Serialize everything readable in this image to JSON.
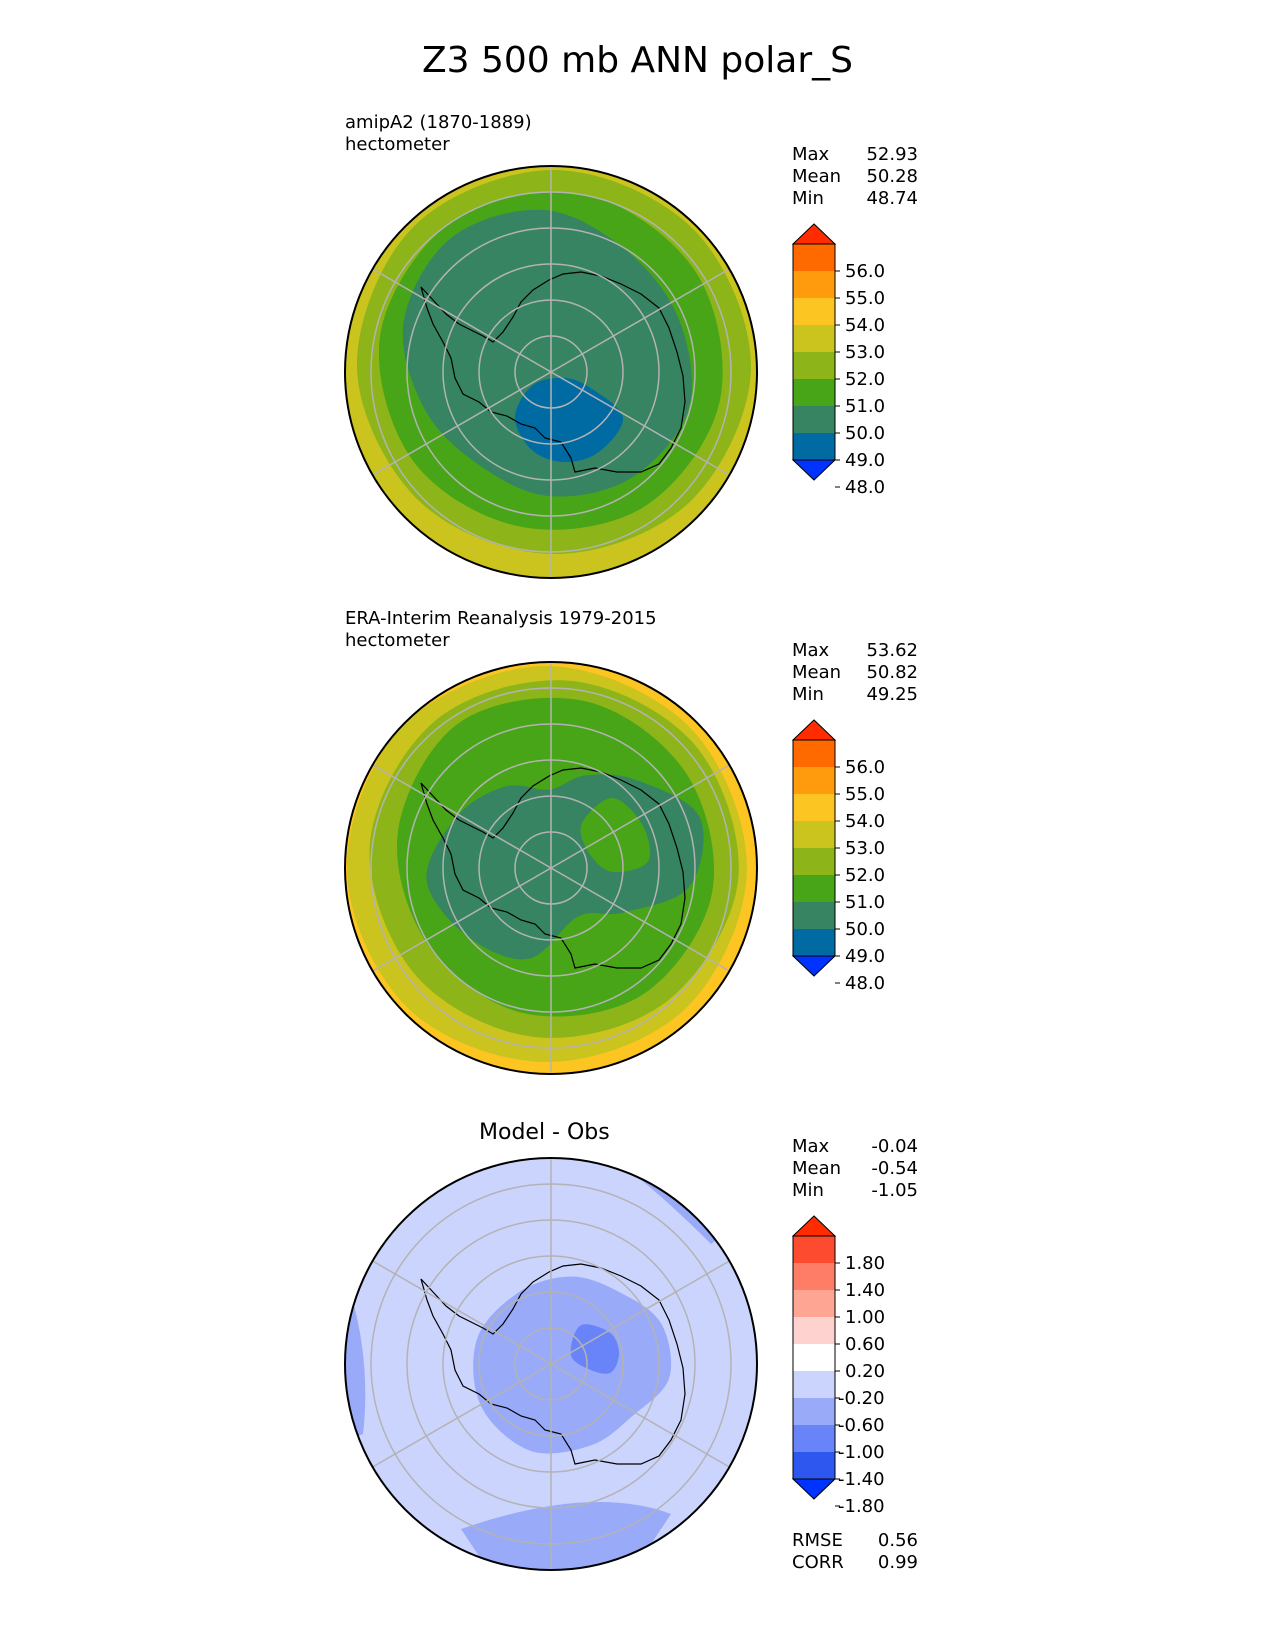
{
  "figure": {
    "title": "Z3 500 mb ANN polar_S"
  },
  "colors": {
    "abs_levels": [
      "#0033ff",
      "#006aa3",
      "#368461",
      "#48a517",
      "#8db519",
      "#cbc41e",
      "#fdc522",
      "#ff9b0d",
      "#ff6a00",
      "#ff2c00"
    ],
    "diff_levels": [
      "#0033ff",
      "#2e57f0",
      "#6884f8",
      "#99aaf8",
      "#cbd4fc",
      "#ffffff",
      "#fed3cf",
      "#fea594",
      "#fe7d66",
      "#fd4b30",
      "#ff2c00"
    ],
    "land_outline": "#000000",
    "grid": "#b3b3b3"
  },
  "panels": [
    {
      "id": "test",
      "label": "amipA2 (1870-1889)",
      "units": "hectometer",
      "stats": {
        "max_label": "Max",
        "max": "52.93",
        "mean_label": "Mean",
        "mean": "50.28",
        "min_label": "Min",
        "min": "48.74"
      },
      "colorbar_ticks": [
        "56.0",
        "55.0",
        "54.0",
        "53.0",
        "52.0",
        "51.0",
        "50.0",
        "49.0",
        "48.0"
      ]
    },
    {
      "id": "reference",
      "label": "ERA-Interim Reanalysis 1979-2015",
      "units": "hectometer",
      "stats": {
        "max_label": "Max",
        "max": "53.62",
        "mean_label": "Mean",
        "mean": "50.82",
        "min_label": "Min",
        "min": "49.25"
      },
      "colorbar_ticks": [
        "56.0",
        "55.0",
        "54.0",
        "53.0",
        "52.0",
        "51.0",
        "50.0",
        "49.0",
        "48.0"
      ]
    },
    {
      "id": "diff",
      "title": "Model - Obs",
      "stats": {
        "max_label": "Max",
        "max": "-0.04",
        "mean_label": "Mean",
        "mean": "-0.54",
        "min_label": "Min",
        "min": "-1.05"
      },
      "colorbar_ticks": [
        "1.80",
        "1.40",
        "1.00",
        "0.60",
        "0.20",
        "-0.20",
        "-0.60",
        "-1.00",
        "-1.40",
        "-1.80"
      ],
      "metrics": {
        "rmse_label": "RMSE",
        "rmse": "0.56",
        "corr_label": "CORR",
        "corr": "0.99"
      }
    }
  ],
  "chart_data": {
    "type": "heatmap",
    "projection": "south polar stereographic",
    "variable": "Z3 500 mb ANN",
    "contour_levels_abs": [
      48.0,
      49.0,
      50.0,
      51.0,
      52.0,
      53.0,
      54.0,
      55.0,
      56.0
    ],
    "contour_levels_diff": [
      -1.8,
      -1.4,
      -1.0,
      -0.6,
      -0.2,
      0.2,
      0.6,
      1.0,
      1.4,
      1.8
    ],
    "series": [
      {
        "name": "amipA2 (1870-1889)",
        "max": 52.93,
        "mean": 50.28,
        "min": 48.74
      },
      {
        "name": "ERA-Interim Reanalysis 1979-2015",
        "max": 53.62,
        "mean": 50.82,
        "min": 49.25
      },
      {
        "name": "Model - Obs",
        "max": -0.04,
        "mean": -0.54,
        "min": -1.05,
        "rmse": 0.56,
        "corr": 0.99
      }
    ]
  }
}
